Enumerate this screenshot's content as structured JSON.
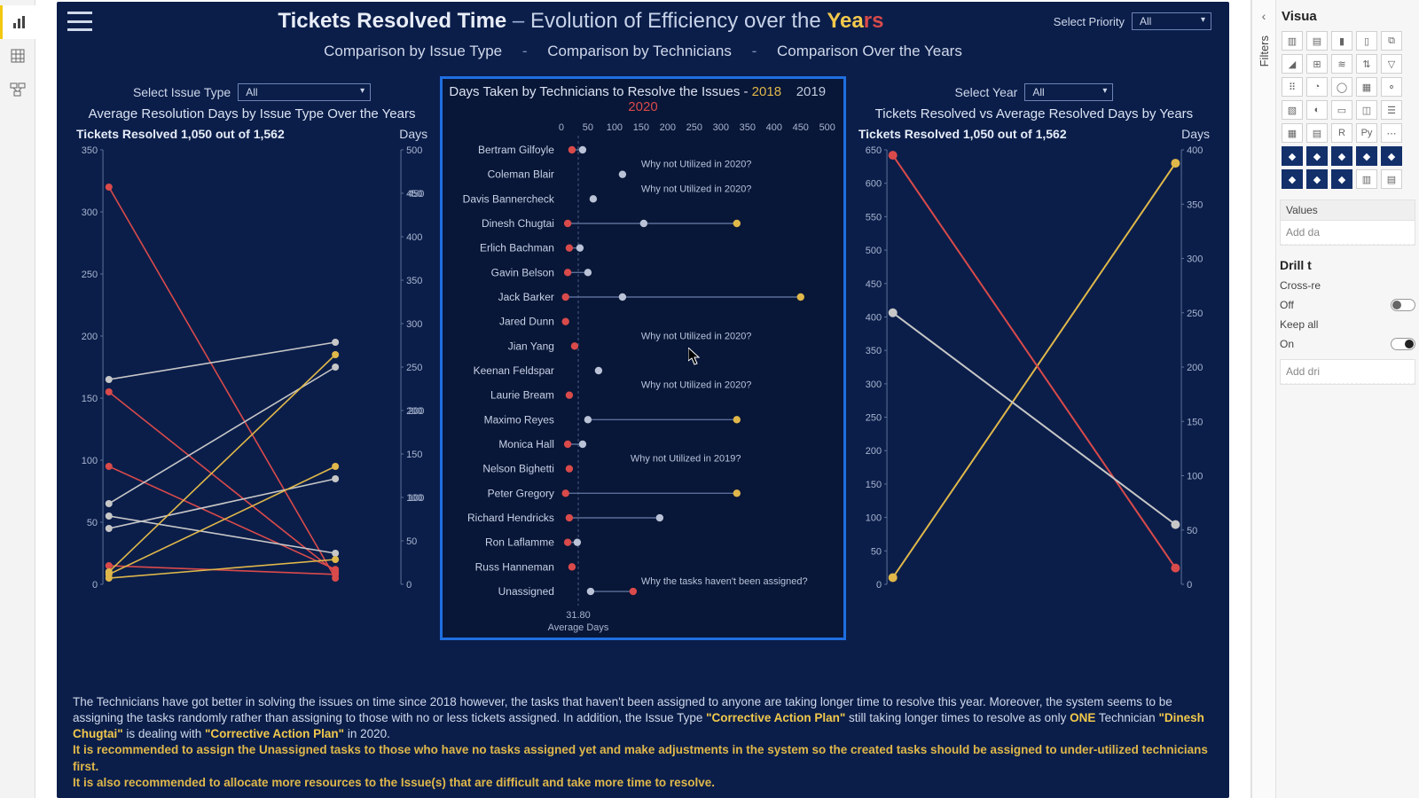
{
  "header": {
    "title_main": "Tickets Resolved Time",
    "title_sep": " – ",
    "title_sub_pre": "Evolution of Efficiency over the ",
    "title_sub_word": "Yea",
    "title_sub_word_tail": "rs",
    "priority_label": "Select Priority",
    "priority_value": "All"
  },
  "nav": {
    "a": "Comparison by Issue Type",
    "b": "Comparison by Technicians",
    "c": "Comparison Over the Years",
    "sep": "-"
  },
  "left_panel": {
    "select_label": "Select Issue Type",
    "select_value": "All",
    "title": "Average Resolution Days by Issue Type Over the Years",
    "kpi": "Tickets Resolved 1,050 out of 1,562",
    "days_label": "Days",
    "chart": {
      "x_domain": [
        0,
        1
      ],
      "y_left": {
        "min": 0,
        "max": 350,
        "ticks": [
          0,
          50,
          100,
          150,
          200,
          250,
          300,
          350
        ]
      },
      "y_right": {
        "min": 0,
        "max": 500,
        "ticks": [
          0,
          50,
          100,
          150,
          200,
          250,
          300,
          350,
          400,
          450,
          500
        ]
      },
      "colors": {
        "2018": "#e0b84a",
        "2019": "#c7c7c7",
        "2020": "#d94a4a",
        "axis": "#5d7096",
        "grid": "#233a6b"
      },
      "series_left": [
        {
          "name": "A",
          "color": "#d94a4a",
          "p0": 320,
          "p1": 5
        },
        {
          "name": "B",
          "color": "#d94a4a",
          "p0": 155,
          "p1": 10
        },
        {
          "name": "C",
          "color": "#d94a4a",
          "p0": 95,
          "p1": 12
        },
        {
          "name": "D",
          "color": "#d94a4a",
          "p0": 15,
          "p1": 8
        },
        {
          "name": "E",
          "color": "#c7c7c7",
          "p0": 165,
          "p1": 195
        },
        {
          "name": "F",
          "color": "#c7c7c7",
          "p0": 65,
          "p1": 175
        },
        {
          "name": "G",
          "color": "#c7c7c7",
          "p0": 55,
          "p1": 25
        },
        {
          "name": "H",
          "color": "#c7c7c7",
          "p0": 45,
          "p1": 85
        },
        {
          "name": "I",
          "color": "#e0b84a",
          "p0": 10,
          "p1": 185
        },
        {
          "name": "J",
          "color": "#e0b84a",
          "p0": 8,
          "p1": 95
        },
        {
          "name": "K",
          "color": "#e0b84a",
          "p0": 5,
          "p1": 20
        }
      ],
      "series_right": [
        {
          "name": "R1",
          "color": "#e0b84a",
          "p0": 20,
          "p1": 450,
          "label": "450"
        },
        {
          "name": "R2",
          "color": "#e0b84a",
          "p0": 15,
          "p1": 370,
          "label": ""
        },
        {
          "name": "R3",
          "color": "#c7c7c7",
          "p0": 200,
          "p1": 200,
          "label": "200"
        },
        {
          "name": "R4",
          "color": "#d94a4a",
          "p0": 100,
          "p1": 100,
          "label": "100"
        },
        {
          "name": "R5",
          "color": "#d94a4a",
          "p0": 70,
          "p1": 10,
          "label": ""
        }
      ]
    }
  },
  "center_panel": {
    "title_pre": "Days Taken by Technicians to Resolve the Issues   -  ",
    "y2018": "2018",
    "y2019": "2019",
    "y2020": "2020",
    "x_ticks": [
      0,
      50,
      100,
      150,
      200,
      250,
      300,
      350,
      400,
      450,
      500
    ],
    "x_min": 0,
    "x_max": 500,
    "avg_line_x": 31.8,
    "avg_value": "31.80",
    "avg_label": "Average Days",
    "colors": {
      "2018": "#e0b84a",
      "2019": "#b9c2d6",
      "2020": "#d94a4a",
      "line": "#5a6f99",
      "tick": "#a9b6d0"
    },
    "note_2020": "Why not Utilized in 2020?",
    "note_2019": "Why not Utilized in 2019?",
    "note_unassigned": "Why the tasks haven't been assigned?",
    "technicians": [
      {
        "name": "Bertram Gilfoyle",
        "v2018": null,
        "v2019": 40,
        "v2020": 20,
        "note": ""
      },
      {
        "name": "Coleman Blair",
        "v2018": null,
        "v2019": 115,
        "v2020": null,
        "note": "2020"
      },
      {
        "name": "Davis Bannercheck",
        "v2018": null,
        "v2019": 60,
        "v2020": null,
        "note": "2020"
      },
      {
        "name": "Dinesh Chugtai",
        "v2018": 330,
        "v2019": 155,
        "v2020": 12,
        "note": ""
      },
      {
        "name": "Erlich Bachman",
        "v2018": null,
        "v2019": 35,
        "v2020": 15,
        "note": ""
      },
      {
        "name": "Gavin Belson",
        "v2018": null,
        "v2019": 50,
        "v2020": 12,
        "note": ""
      },
      {
        "name": "Jack Barker",
        "v2018": 450,
        "v2019": 115,
        "v2020": 8,
        "note": ""
      },
      {
        "name": "Jared Dunn",
        "v2018": null,
        "v2019": null,
        "v2020": 8,
        "note": ""
      },
      {
        "name": "Jian Yang",
        "v2018": null,
        "v2019": null,
        "v2020": 25,
        "note": "2020"
      },
      {
        "name": "Keenan Feldspar",
        "v2018": null,
        "v2019": 70,
        "v2020": null,
        "note": ""
      },
      {
        "name": "Laurie Bream",
        "v2018": null,
        "v2019": null,
        "v2020": 15,
        "note": "2020"
      },
      {
        "name": "Maximo Reyes",
        "v2018": 330,
        "v2019": 50,
        "v2020": null,
        "note": ""
      },
      {
        "name": "Monica Hall",
        "v2018": null,
        "v2019": 40,
        "v2020": 12,
        "note": ""
      },
      {
        "name": "Nelson Bighetti",
        "v2018": null,
        "v2019": null,
        "v2020": 15,
        "note": "2019"
      },
      {
        "name": "Peter Gregory",
        "v2018": 330,
        "v2019": null,
        "v2020": 8,
        "note": ""
      },
      {
        "name": "Richard Hendricks",
        "v2018": null,
        "v2019": 185,
        "v2020": 15,
        "note": ""
      },
      {
        "name": "Ron Laflamme",
        "v2018": null,
        "v2019": 30,
        "v2020": 12,
        "note": ""
      },
      {
        "name": "Russ Hanneman",
        "v2018": null,
        "v2019": null,
        "v2020": 20,
        "note": ""
      },
      {
        "name": "Unassigned",
        "v2018": null,
        "v2019": 55,
        "v2020": 135,
        "note": "unassigned"
      }
    ]
  },
  "right_panel": {
    "select_label": "Select Year",
    "select_value": "All",
    "title": "Tickets Resolved vs Average Resolved Days by Years",
    "kpi": "Tickets Resolved 1,050 out of 1,562",
    "days_label": "Days",
    "chart": {
      "y_left": {
        "min": 0,
        "max": 650,
        "ticks": [
          0,
          50,
          100,
          150,
          200,
          250,
          300,
          350,
          400,
          450,
          500,
          550,
          600,
          650
        ]
      },
      "y_right": {
        "min": 0,
        "max": 400,
        "ticks": [
          0,
          50,
          100,
          150,
          200,
          250,
          300,
          350,
          400
        ]
      },
      "colors": {
        "axis": "#5d7096"
      },
      "series": [
        {
          "name": "TicketsResolved",
          "color": "#e0b84a",
          "axis": "left",
          "p0": 10,
          "p1": 630
        },
        {
          "name": "AvgDays",
          "color": "#d94a4a",
          "axis": "right",
          "p0": 395,
          "p1": 15
        },
        {
          "name": "Benchmark",
          "color": "#c7c7c7",
          "axis": "right",
          "p0": 250,
          "p1": 55
        }
      ]
    }
  },
  "footer": {
    "line1a": "The Technicians have got better in solving the issues on time since 2018 however, the tasks that haven't been assigned to anyone are taking longer time to resolve this year. Moreover, the system seems to be assigning the tasks randomly rather than assigning to those with no or less tickets assigned.  In addition, the Issue Type ",
    "hl1": "\"Corrective Action Plan\"",
    "line1b": " still taking longer times to resolve as only ",
    "hl2": "ONE",
    "line1c": " Technician ",
    "hl3": "\"Dinesh Chugtai\"",
    "line1d": " is dealing with ",
    "hl4": "\"Corrective Action Plan\"",
    "line1e": "  in 2020.",
    "rec1": "It is recommended to assign the Unassigned tasks to those who have no tasks assigned yet and make adjustments in the system so the created tasks should be assigned to under-utilized technicians first.",
    "rec2": "It is also recommended to allocate more resources to the Issue(s) that are difficult and take more time to resolve."
  },
  "right_pane": {
    "heading": "Visua",
    "filters_label": "Filters",
    "values_label": "Values",
    "values_placeholder": "Add da",
    "drill_label": "Drill t",
    "cross": "Cross-re",
    "off": "Off",
    "keep": "Keep all",
    "on": "On",
    "add_drill": "Add dri",
    "py_label": "Py",
    "r_label": "R"
  }
}
